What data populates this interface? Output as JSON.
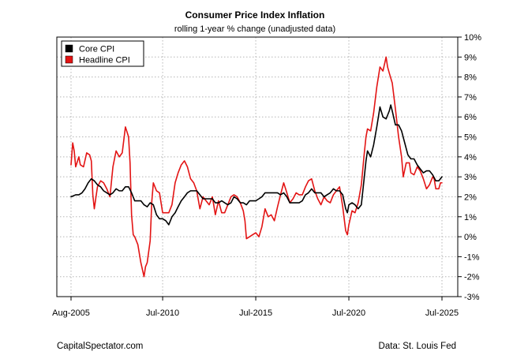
{
  "chart_data": {
    "type": "line",
    "title": "Consumer Price Index Inflation",
    "subtitle": "rolling 1-year % change (unadjusted data)",
    "xlabel": "",
    "ylabel": "",
    "x_unit": "year",
    "xlim": [
      2005.58,
      2025.5
    ],
    "ylim": [
      -3,
      10
    ],
    "y_ticks": [
      -3,
      -2,
      -1,
      0,
      1,
      2,
      3,
      4,
      5,
      6,
      7,
      8,
      9,
      10
    ],
    "y_tick_labels": [
      "-3%",
      "-2%",
      "-1%",
      "0%",
      "1%",
      "2%",
      "3%",
      "4%",
      "5%",
      "6%",
      "7%",
      "8%",
      "9%",
      "10%"
    ],
    "x_ticks": [
      2005.58,
      2010.5,
      2015.5,
      2020.5,
      2025.5
    ],
    "x_tick_labels": [
      "Aug-2005",
      "Jul-2010",
      "Jul-2015",
      "Jul-2020",
      "Jul-2025"
    ],
    "y_axis_side": "right",
    "grid": true,
    "legend_position": "top-left",
    "series": [
      {
        "name": "Core CPI",
        "color": "#000000",
        "points": [
          [
            2005.58,
            2.0
          ],
          [
            2005.83,
            2.1
          ],
          [
            2006.0,
            2.1
          ],
          [
            2006.17,
            2.2
          ],
          [
            2006.33,
            2.4
          ],
          [
            2006.5,
            2.7
          ],
          [
            2006.67,
            2.9
          ],
          [
            2006.83,
            2.8
          ],
          [
            2007.0,
            2.6
          ],
          [
            2007.17,
            2.5
          ],
          [
            2007.33,
            2.3
          ],
          [
            2007.5,
            2.2
          ],
          [
            2007.67,
            2.1
          ],
          [
            2007.83,
            2.2
          ],
          [
            2008.0,
            2.4
          ],
          [
            2008.17,
            2.3
          ],
          [
            2008.33,
            2.3
          ],
          [
            2008.5,
            2.5
          ],
          [
            2008.67,
            2.5
          ],
          [
            2008.83,
            2.2
          ],
          [
            2009.0,
            1.8
          ],
          [
            2009.17,
            1.8
          ],
          [
            2009.33,
            1.8
          ],
          [
            2009.5,
            1.6
          ],
          [
            2009.67,
            1.5
          ],
          [
            2009.83,
            1.7
          ],
          [
            2010.0,
            1.6
          ],
          [
            2010.17,
            1.1
          ],
          [
            2010.33,
            0.9
          ],
          [
            2010.5,
            0.9
          ],
          [
            2010.67,
            0.8
          ],
          [
            2010.83,
            0.6
          ],
          [
            2011.0,
            1.0
          ],
          [
            2011.17,
            1.2
          ],
          [
            2011.33,
            1.5
          ],
          [
            2011.5,
            1.8
          ],
          [
            2011.67,
            2.0
          ],
          [
            2011.83,
            2.2
          ],
          [
            2012.0,
            2.3
          ],
          [
            2012.17,
            2.3
          ],
          [
            2012.33,
            2.3
          ],
          [
            2012.5,
            2.1
          ],
          [
            2012.67,
            1.9
          ],
          [
            2012.83,
            1.9
          ],
          [
            2013.0,
            1.9
          ],
          [
            2013.17,
            1.9
          ],
          [
            2013.33,
            1.7
          ],
          [
            2013.5,
            1.7
          ],
          [
            2013.67,
            1.8
          ],
          [
            2013.83,
            1.7
          ],
          [
            2014.0,
            1.6
          ],
          [
            2014.17,
            1.7
          ],
          [
            2014.33,
            2.0
          ],
          [
            2014.5,
            1.9
          ],
          [
            2014.67,
            1.7
          ],
          [
            2014.83,
            1.7
          ],
          [
            2015.0,
            1.6
          ],
          [
            2015.17,
            1.8
          ],
          [
            2015.33,
            1.8
          ],
          [
            2015.5,
            1.8
          ],
          [
            2015.67,
            1.9
          ],
          [
            2015.83,
            2.0
          ],
          [
            2016.0,
            2.2
          ],
          [
            2016.17,
            2.2
          ],
          [
            2016.33,
            2.2
          ],
          [
            2016.5,
            2.2
          ],
          [
            2016.67,
            2.2
          ],
          [
            2016.83,
            2.1
          ],
          [
            2017.0,
            2.2
          ],
          [
            2017.17,
            2.0
          ],
          [
            2017.33,
            1.7
          ],
          [
            2017.5,
            1.7
          ],
          [
            2017.67,
            1.7
          ],
          [
            2017.83,
            1.7
          ],
          [
            2018.0,
            1.8
          ],
          [
            2018.17,
            2.1
          ],
          [
            2018.33,
            2.2
          ],
          [
            2018.5,
            2.4
          ],
          [
            2018.67,
            2.2
          ],
          [
            2018.83,
            2.2
          ],
          [
            2019.0,
            2.2
          ],
          [
            2019.17,
            2.0
          ],
          [
            2019.33,
            2.1
          ],
          [
            2019.5,
            2.2
          ],
          [
            2019.67,
            2.4
          ],
          [
            2019.83,
            2.3
          ],
          [
            2020.0,
            2.3
          ],
          [
            2020.17,
            2.1
          ],
          [
            2020.33,
            1.4
          ],
          [
            2020.42,
            1.2
          ],
          [
            2020.5,
            1.6
          ],
          [
            2020.67,
            1.7
          ],
          [
            2020.83,
            1.6
          ],
          [
            2021.0,
            1.4
          ],
          [
            2021.17,
            1.6
          ],
          [
            2021.33,
            3.0
          ],
          [
            2021.42,
            3.8
          ],
          [
            2021.5,
            4.3
          ],
          [
            2021.67,
            4.0
          ],
          [
            2021.83,
            4.6
          ],
          [
            2022.0,
            5.5
          ],
          [
            2022.17,
            6.5
          ],
          [
            2022.33,
            6.0
          ],
          [
            2022.5,
            5.9
          ],
          [
            2022.67,
            6.3
          ],
          [
            2022.75,
            6.6
          ],
          [
            2022.83,
            6.3
          ],
          [
            2023.0,
            5.6
          ],
          [
            2023.17,
            5.6
          ],
          [
            2023.33,
            5.3
          ],
          [
            2023.5,
            4.7
          ],
          [
            2023.67,
            4.1
          ],
          [
            2023.83,
            3.9
          ],
          [
            2024.0,
            3.9
          ],
          [
            2024.17,
            3.6
          ],
          [
            2024.33,
            3.4
          ],
          [
            2024.5,
            3.2
          ],
          [
            2024.67,
            3.3
          ],
          [
            2024.83,
            3.3
          ],
          [
            2025.0,
            3.1
          ],
          [
            2025.17,
            2.8
          ],
          [
            2025.33,
            2.8
          ],
          [
            2025.5,
            3.0
          ]
        ]
      },
      {
        "name": "Headline CPI",
        "color": "#e31414",
        "points": [
          [
            2005.58,
            3.6
          ],
          [
            2005.67,
            4.7
          ],
          [
            2005.75,
            4.3
          ],
          [
            2005.83,
            3.5
          ],
          [
            2006.0,
            4.0
          ],
          [
            2006.08,
            3.6
          ],
          [
            2006.25,
            3.5
          ],
          [
            2006.42,
            4.2
          ],
          [
            2006.58,
            4.1
          ],
          [
            2006.67,
            3.8
          ],
          [
            2006.75,
            2.1
          ],
          [
            2006.83,
            1.4
          ],
          [
            2006.92,
            2.0
          ],
          [
            2007.0,
            2.5
          ],
          [
            2007.17,
            2.8
          ],
          [
            2007.33,
            2.7
          ],
          [
            2007.5,
            2.4
          ],
          [
            2007.67,
            2.0
          ],
          [
            2007.83,
            3.5
          ],
          [
            2008.0,
            4.3
          ],
          [
            2008.17,
            4.0
          ],
          [
            2008.33,
            4.2
          ],
          [
            2008.5,
            5.5
          ],
          [
            2008.67,
            5.0
          ],
          [
            2008.75,
            3.7
          ],
          [
            2008.83,
            1.1
          ],
          [
            2008.92,
            0.1
          ],
          [
            2009.0,
            0.0
          ],
          [
            2009.17,
            -0.4
          ],
          [
            2009.33,
            -1.3
          ],
          [
            2009.5,
            -2.0
          ],
          [
            2009.58,
            -1.5
          ],
          [
            2009.67,
            -1.3
          ],
          [
            2009.83,
            -0.2
          ],
          [
            2009.92,
            1.8
          ],
          [
            2010.0,
            2.7
          ],
          [
            2010.17,
            2.3
          ],
          [
            2010.33,
            2.2
          ],
          [
            2010.5,
            1.2
          ],
          [
            2010.67,
            1.2
          ],
          [
            2010.83,
            1.2
          ],
          [
            2011.0,
            1.6
          ],
          [
            2011.17,
            2.7
          ],
          [
            2011.33,
            3.2
          ],
          [
            2011.5,
            3.6
          ],
          [
            2011.67,
            3.8
          ],
          [
            2011.83,
            3.5
          ],
          [
            2012.0,
            2.9
          ],
          [
            2012.17,
            2.7
          ],
          [
            2012.33,
            2.3
          ],
          [
            2012.5,
            1.4
          ],
          [
            2012.67,
            2.0
          ],
          [
            2012.83,
            1.8
          ],
          [
            2013.0,
            1.6
          ],
          [
            2013.17,
            2.0
          ],
          [
            2013.33,
            1.1
          ],
          [
            2013.5,
            1.8
          ],
          [
            2013.67,
            1.2
          ],
          [
            2013.83,
            1.2
          ],
          [
            2014.0,
            1.6
          ],
          [
            2014.17,
            2.0
          ],
          [
            2014.33,
            2.1
          ],
          [
            2014.5,
            2.0
          ],
          [
            2014.67,
            1.7
          ],
          [
            2014.83,
            1.3
          ],
          [
            2014.92,
            0.8
          ],
          [
            2015.0,
            -0.1
          ],
          [
            2015.17,
            0.0
          ],
          [
            2015.33,
            0.1
          ],
          [
            2015.5,
            0.2
          ],
          [
            2015.67,
            0.0
          ],
          [
            2015.83,
            0.5
          ],
          [
            2016.0,
            1.4
          ],
          [
            2016.17,
            1.0
          ],
          [
            2016.33,
            1.1
          ],
          [
            2016.5,
            0.8
          ],
          [
            2016.67,
            1.5
          ],
          [
            2016.83,
            2.1
          ],
          [
            2017.0,
            2.7
          ],
          [
            2017.17,
            2.2
          ],
          [
            2017.33,
            1.7
          ],
          [
            2017.5,
            1.9
          ],
          [
            2017.67,
            2.2
          ],
          [
            2017.83,
            2.1
          ],
          [
            2018.0,
            2.1
          ],
          [
            2018.17,
            2.5
          ],
          [
            2018.33,
            2.8
          ],
          [
            2018.5,
            2.9
          ],
          [
            2018.67,
            2.3
          ],
          [
            2018.83,
            1.9
          ],
          [
            2019.0,
            1.6
          ],
          [
            2019.17,
            2.0
          ],
          [
            2019.33,
            1.8
          ],
          [
            2019.5,
            1.7
          ],
          [
            2019.67,
            2.1
          ],
          [
            2019.83,
            2.3
          ],
          [
            2020.0,
            2.5
          ],
          [
            2020.17,
            1.5
          ],
          [
            2020.33,
            0.3
          ],
          [
            2020.42,
            0.1
          ],
          [
            2020.5,
            0.6
          ],
          [
            2020.67,
            1.3
          ],
          [
            2020.83,
            1.2
          ],
          [
            2021.0,
            1.7
          ],
          [
            2021.17,
            2.6
          ],
          [
            2021.33,
            4.2
          ],
          [
            2021.42,
            5.0
          ],
          [
            2021.5,
            5.4
          ],
          [
            2021.67,
            5.3
          ],
          [
            2021.83,
            6.2
          ],
          [
            2022.0,
            7.5
          ],
          [
            2022.17,
            8.5
          ],
          [
            2022.33,
            8.3
          ],
          [
            2022.5,
            9.0
          ],
          [
            2022.58,
            8.5
          ],
          [
            2022.67,
            8.2
          ],
          [
            2022.83,
            7.7
          ],
          [
            2023.0,
            6.4
          ],
          [
            2023.17,
            5.0
          ],
          [
            2023.33,
            4.0
          ],
          [
            2023.42,
            3.0
          ],
          [
            2023.58,
            3.7
          ],
          [
            2023.75,
            3.7
          ],
          [
            2023.83,
            3.2
          ],
          [
            2024.0,
            3.1
          ],
          [
            2024.17,
            3.5
          ],
          [
            2024.33,
            3.3
          ],
          [
            2024.5,
            2.9
          ],
          [
            2024.67,
            2.4
          ],
          [
            2024.83,
            2.6
          ],
          [
            2025.0,
            3.0
          ],
          [
            2025.08,
            2.9
          ],
          [
            2025.17,
            2.4
          ],
          [
            2025.33,
            2.4
          ],
          [
            2025.42,
            2.7
          ],
          [
            2025.5,
            2.7
          ]
        ]
      }
    ]
  },
  "footer": {
    "source_left": "CapitalSpectator.com",
    "source_right": "Data: St. Louis Fed"
  }
}
